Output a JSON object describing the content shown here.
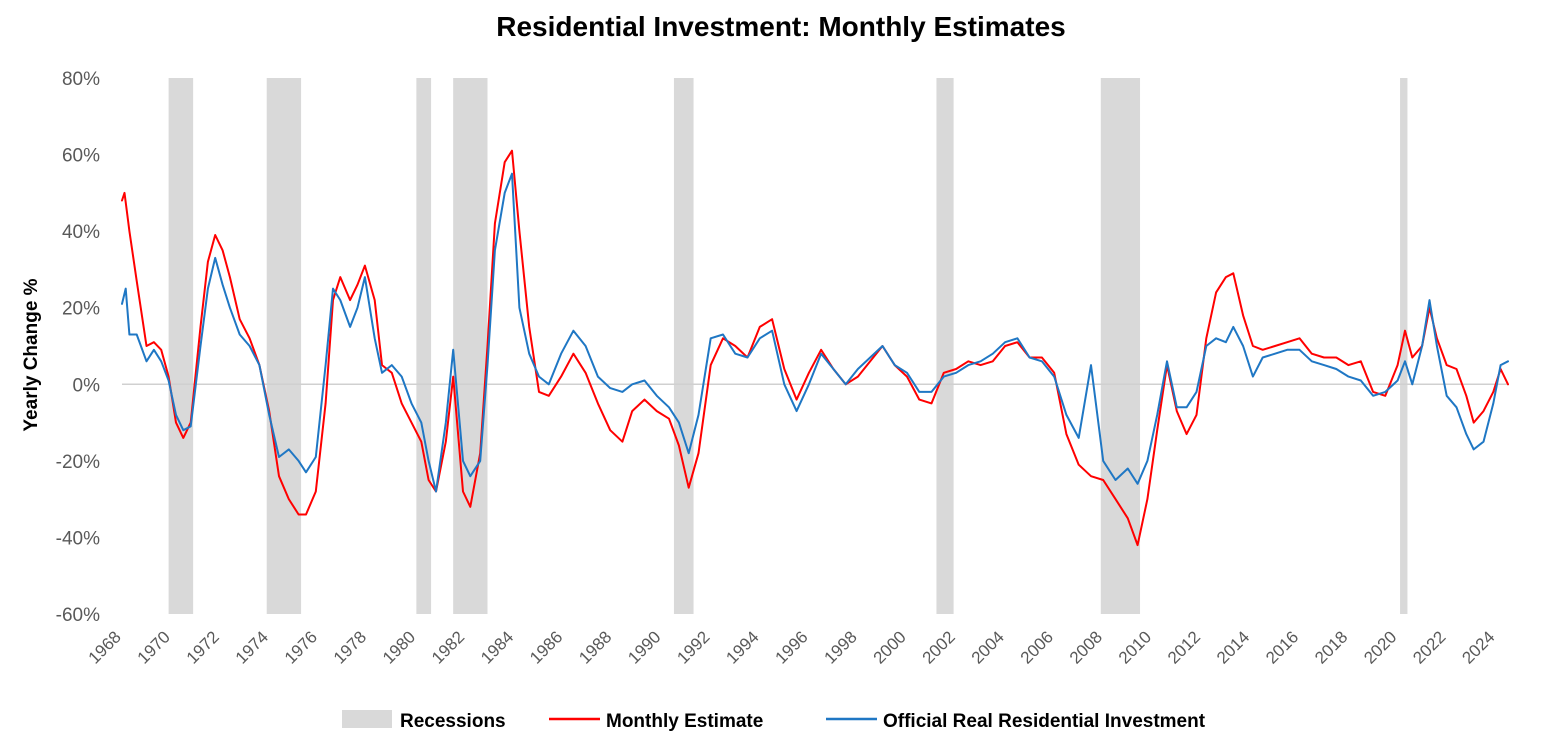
{
  "chart_data": {
    "type": "line",
    "title": "Residential Investment: Monthly Estimates",
    "xlabel": "",
    "ylabel": "Yearly Change %",
    "ylim": [
      -60,
      80
    ],
    "yticks": [
      -60,
      -40,
      -20,
      0,
      20,
      40,
      60,
      80
    ],
    "ytick_labels": [
      "-60%",
      "-40%",
      "-20%",
      "0%",
      "20%",
      "40%",
      "60%",
      "80%"
    ],
    "xlim": [
      1968,
      2024.5
    ],
    "xticks": [
      1968,
      1970,
      1972,
      1974,
      1976,
      1978,
      1980,
      1982,
      1984,
      1986,
      1988,
      1990,
      1992,
      1994,
      1996,
      1998,
      2000,
      2002,
      2004,
      2006,
      2008,
      2010,
      2012,
      2014,
      2016,
      2018,
      2020,
      2022,
      2024
    ],
    "xtick_labels": [
      "1968",
      "1970",
      "1972",
      "1974",
      "1976",
      "1978",
      "1980",
      "1982",
      "1984",
      "1986",
      "1988",
      "1990",
      "1992",
      "1994",
      "1996",
      "1998",
      "2000",
      "2002",
      "2004",
      "2006",
      "2008",
      "2010",
      "2012",
      "2014",
      "2016",
      "2018",
      "2020",
      "2022",
      "2024"
    ],
    "grid": false,
    "legend_position": "bottom",
    "recessions": {
      "name": "Recessions",
      "color": "#d9d9d9",
      "periods": [
        [
          1969.9,
          1970.9
        ],
        [
          1973.9,
          1975.3
        ],
        [
          1980.0,
          1980.6
        ],
        [
          1981.5,
          1982.9
        ],
        [
          1990.5,
          1991.3
        ],
        [
          2001.2,
          2001.9
        ],
        [
          2007.9,
          2009.5
        ],
        [
          2020.1,
          2020.4
        ]
      ]
    },
    "series": [
      {
        "name": "Monthly Estimate",
        "color": "#ff0000",
        "x": [
          1968.0,
          1968.1,
          1968.3,
          1968.6,
          1969.0,
          1969.3,
          1969.6,
          1969.9,
          1970.2,
          1970.5,
          1970.8,
          1971.2,
          1971.5,
          1971.8,
          1972.1,
          1972.4,
          1972.8,
          1973.2,
          1973.6,
          1974.0,
          1974.4,
          1974.8,
          1975.2,
          1975.5,
          1975.9,
          1976.3,
          1976.6,
          1976.9,
          1977.3,
          1977.6,
          1977.9,
          1978.3,
          1978.6,
          1979.0,
          1979.4,
          1979.8,
          1980.2,
          1980.5,
          1980.8,
          1981.2,
          1981.5,
          1981.9,
          1982.2,
          1982.6,
          1982.9,
          1983.2,
          1983.6,
          1983.9,
          1984.2,
          1984.6,
          1985.0,
          1985.4,
          1985.9,
          1986.4,
          1986.9,
          1987.4,
          1987.9,
          1988.4,
          1988.8,
          1989.3,
          1989.8,
          1990.3,
          1990.7,
          1991.1,
          1991.5,
          1992.0,
          1992.5,
          1993.0,
          1993.5,
          1994.0,
          1994.5,
          1995.0,
          1995.5,
          1996.0,
          1996.5,
          1997.0,
          1997.5,
          1998.0,
          1998.5,
          1999.0,
          1999.5,
          2000.0,
          2000.5,
          2001.0,
          2001.5,
          2002.0,
          2002.5,
          2003.0,
          2003.5,
          2004.0,
          2004.5,
          2005.0,
          2005.5,
          2006.0,
          2006.5,
          2007.0,
          2007.5,
          2008.0,
          2008.5,
          2009.0,
          2009.4,
          2009.8,
          2010.2,
          2010.6,
          2011.0,
          2011.4,
          2011.8,
          2012.2,
          2012.6,
          2013.0,
          2013.3,
          2013.7,
          2014.1,
          2014.5,
          2015.0,
          2015.5,
          2016.0,
          2016.5,
          2017.0,
          2017.5,
          2018.0,
          2018.5,
          2019.0,
          2019.5,
          2020.0,
          2020.3,
          2020.6,
          2021.0,
          2021.3,
          2021.6,
          2022.0,
          2022.4,
          2022.8,
          2023.1,
          2023.5,
          2023.9,
          2024.2,
          2024.5
        ],
        "values": [
          48,
          50,
          40,
          27,
          10,
          11,
          9,
          2,
          -10,
          -14,
          -10,
          15,
          32,
          39,
          35,
          28,
          17,
          12,
          5,
          -7,
          -24,
          -30,
          -34,
          -34,
          -28,
          -5,
          22,
          28,
          22,
          26,
          31,
          22,
          5,
          3,
          -5,
          -10,
          -15,
          -25,
          -28,
          -15,
          2,
          -28,
          -32,
          -18,
          10,
          42,
          58,
          61,
          40,
          15,
          -2,
          -3,
          2,
          8,
          3,
          -5,
          -12,
          -15,
          -7,
          -4,
          -7,
          -9,
          -16,
          -27,
          -18,
          5,
          12,
          10,
          7,
          15,
          17,
          4,
          -4,
          3,
          9,
          4,
          0,
          2,
          6,
          10,
          5,
          2,
          -4,
          -5,
          3,
          4,
          6,
          5,
          6,
          10,
          11,
          7,
          7,
          3,
          -13,
          -21,
          -24,
          -25,
          -30,
          -35,
          -42,
          -30,
          -12,
          5,
          -7,
          -13,
          -8,
          12,
          24,
          28,
          29,
          18,
          10,
          9,
          10,
          11,
          12,
          8,
          7,
          7,
          5,
          6,
          -2,
          -3,
          5,
          14,
          7,
          10,
          20,
          12,
          5,
          4,
          -3,
          -10,
          -7,
          -2,
          4,
          0
        ]
      },
      {
        "name": "Official Real Residential Investment",
        "color": "#1f77c4",
        "x": [
          1968.0,
          1968.15,
          1968.3,
          1968.6,
          1969.0,
          1969.3,
          1969.6,
          1969.9,
          1970.2,
          1970.5,
          1970.8,
          1971.2,
          1971.5,
          1971.8,
          1972.1,
          1972.4,
          1972.8,
          1973.2,
          1973.6,
          1974.0,
          1974.4,
          1974.8,
          1975.2,
          1975.5,
          1975.9,
          1976.3,
          1976.6,
          1976.9,
          1977.3,
          1977.6,
          1977.9,
          1978.3,
          1978.6,
          1979.0,
          1979.4,
          1979.8,
          1980.2,
          1980.5,
          1980.8,
          1981.2,
          1981.5,
          1981.9,
          1982.2,
          1982.6,
          1982.9,
          1983.2,
          1983.6,
          1983.9,
          1984.2,
          1984.6,
          1985.0,
          1985.4,
          1985.9,
          1986.4,
          1986.9,
          1987.4,
          1987.9,
          1988.4,
          1988.8,
          1989.3,
          1989.8,
          1990.3,
          1990.7,
          1991.1,
          1991.5,
          1992.0,
          1992.5,
          1993.0,
          1993.5,
          1994.0,
          1994.5,
          1995.0,
          1995.5,
          1996.0,
          1996.5,
          1997.0,
          1997.5,
          1998.0,
          1998.5,
          1999.0,
          1999.5,
          2000.0,
          2000.5,
          2001.0,
          2001.5,
          2002.0,
          2002.5,
          2003.0,
          2003.5,
          2004.0,
          2004.5,
          2005.0,
          2005.5,
          2006.0,
          2006.5,
          2007.0,
          2007.5,
          2008.0,
          2008.5,
          2009.0,
          2009.4,
          2009.8,
          2010.2,
          2010.6,
          2011.0,
          2011.4,
          2011.8,
          2012.2,
          2012.6,
          2013.0,
          2013.3,
          2013.7,
          2014.1,
          2014.5,
          2015.0,
          2015.5,
          2016.0,
          2016.5,
          2017.0,
          2017.5,
          2018.0,
          2018.5,
          2019.0,
          2019.5,
          2020.0,
          2020.3,
          2020.6,
          2021.0,
          2021.3,
          2021.6,
          2022.0,
          2022.4,
          2022.8,
          2023.1,
          2023.5,
          2023.9,
          2024.2,
          2024.5
        ],
        "values": [
          21,
          25,
          13,
          13,
          6,
          9,
          6,
          1,
          -8,
          -12,
          -11,
          10,
          25,
          33,
          26,
          20,
          13,
          10,
          5,
          -8,
          -19,
          -17,
          -20,
          -23,
          -19,
          5,
          25,
          22,
          15,
          20,
          28,
          12,
          3,
          5,
          2,
          -5,
          -10,
          -20,
          -28,
          -10,
          9,
          -20,
          -24,
          -20,
          5,
          35,
          50,
          55,
          20,
          8,
          2,
          0,
          8,
          14,
          10,
          2,
          -1,
          -2,
          0,
          1,
          -3,
          -6,
          -10,
          -18,
          -8,
          12,
          13,
          8,
          7,
          12,
          14,
          0,
          -7,
          0,
          8,
          4,
          0,
          4,
          7,
          10,
          5,
          3,
          -2,
          -2,
          2,
          3,
          5,
          6,
          8,
          11,
          12,
          7,
          6,
          2,
          -8,
          -14,
          5,
          -20,
          -25,
          -22,
          -26,
          -20,
          -8,
          6,
          -6,
          -6,
          -2,
          10,
          12,
          11,
          15,
          10,
          2,
          7,
          8,
          9,
          9,
          6,
          5,
          4,
          2,
          1,
          -3,
          -2,
          1,
          6,
          0,
          10,
          22,
          10,
          -3,
          -6,
          -13,
          -17,
          -15,
          -5,
          5,
          6
        ]
      }
    ]
  }
}
